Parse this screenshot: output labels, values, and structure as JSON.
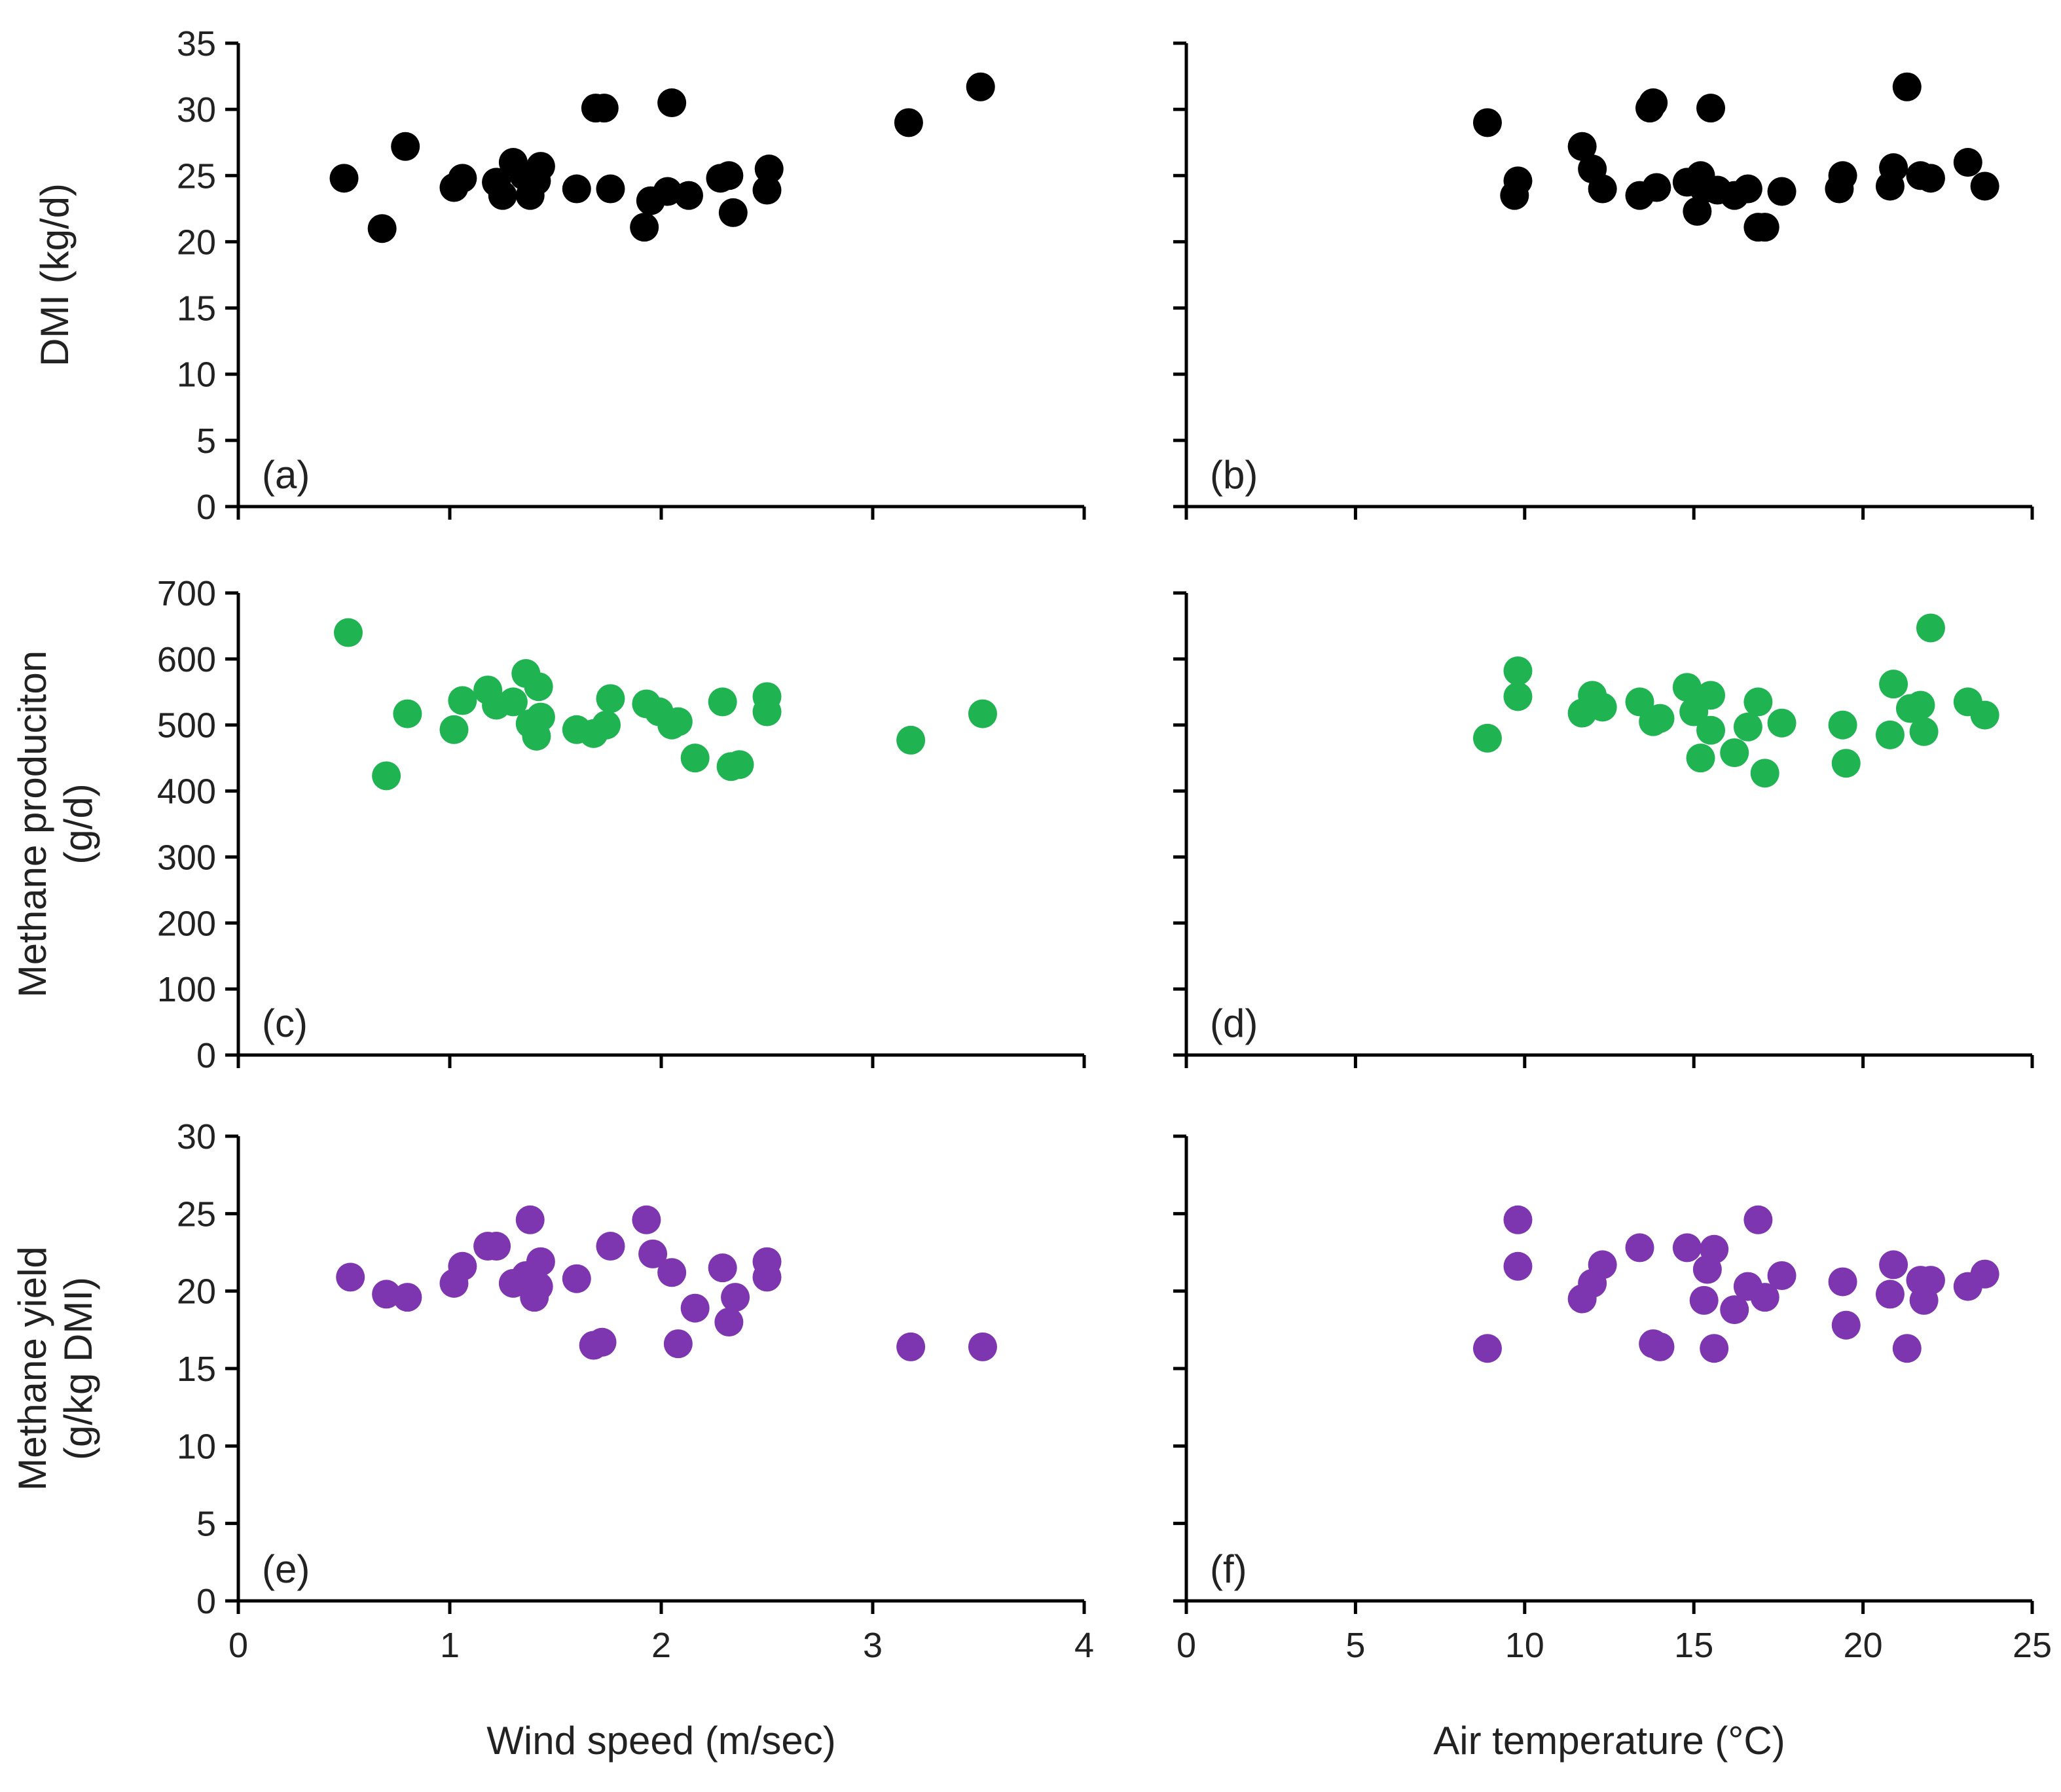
{
  "figure": {
    "colors": {
      "black": "#000000",
      "green": "#1fb451",
      "purple": "#7e35b0"
    }
  },
  "chart_data": [
    {
      "type": "scatter",
      "panel": "(a)",
      "xlabel": "",
      "ylabel": "DMI (kg/d)",
      "xlim": [
        0,
        4
      ],
      "ylim": [
        0,
        35
      ],
      "xticks": [
        0,
        1,
        2,
        3,
        4
      ],
      "yticks": [
        0,
        5,
        10,
        15,
        20,
        25,
        30,
        35
      ],
      "show_x_tick_labels": false,
      "show_y_tick_labels": true,
      "color": "#000000",
      "x": [
        0.5,
        0.68,
        0.79,
        1.02,
        1.06,
        1.22,
        1.25,
        1.3,
        1.35,
        1.38,
        1.41,
        1.43,
        1.6,
        1.69,
        1.73,
        1.76,
        1.92,
        1.95,
        2.03,
        2.05,
        2.13,
        2.28,
        2.32,
        2.34,
        2.5,
        2.51,
        3.17,
        3.51
      ],
      "y": [
        24.8,
        21.0,
        27.2,
        24.1,
        24.8,
        24.5,
        23.5,
        26.0,
        25.0,
        23.5,
        24.6,
        25.7,
        24.0,
        30.1,
        30.1,
        24.0,
        21.1,
        23.1,
        23.8,
        30.5,
        23.5,
        24.8,
        25.0,
        22.2,
        23.9,
        25.5,
        29.0,
        31.7
      ]
    },
    {
      "type": "scatter",
      "panel": "(b)",
      "xlabel": "",
      "ylabel": "",
      "xlim": [
        0,
        25
      ],
      "ylim": [
        0,
        35
      ],
      "xticks": [
        0,
        5,
        10,
        15,
        20,
        25
      ],
      "yticks": [
        0,
        5,
        10,
        15,
        20,
        25,
        30,
        35
      ],
      "show_x_tick_labels": false,
      "show_y_tick_labels": false,
      "color": "#000000",
      "x": [
        8.9,
        9.7,
        9.8,
        11.7,
        12.0,
        12.3,
        13.4,
        13.7,
        13.8,
        13.9,
        14.8,
        15.1,
        15.2,
        15.3,
        15.5,
        15.7,
        16.2,
        16.6,
        16.9,
        17.1,
        17.6,
        19.3,
        19.4,
        20.8,
        20.9,
        21.3,
        21.7,
        22.0,
        23.1,
        23.6
      ],
      "y": [
        29.0,
        23.5,
        24.6,
        27.2,
        25.5,
        24.0,
        23.5,
        30.1,
        30.5,
        24.1,
        24.5,
        22.3,
        25.0,
        24.0,
        30.1,
        23.9,
        23.5,
        24.0,
        21.1,
        21.1,
        23.8,
        24.0,
        25.0,
        24.2,
        25.6,
        31.7,
        25.0,
        24.8,
        26.0,
        24.2
      ]
    },
    {
      "type": "scatter",
      "panel": "(c)",
      "xlabel": "",
      "ylabel": "Methane produciton (g/d)",
      "ylabel_lines": [
        "Methane produciton",
        "(g/d)"
      ],
      "xlim": [
        0,
        4
      ],
      "ylim": [
        0,
        700
      ],
      "xticks": [
        0,
        1,
        2,
        3,
        4
      ],
      "yticks": [
        0,
        100,
        200,
        300,
        400,
        500,
        600,
        700
      ],
      "show_x_tick_labels": false,
      "show_y_tick_labels": true,
      "color": "#1fb451",
      "x": [
        0.52,
        0.7,
        0.8,
        1.02,
        1.06,
        1.18,
        1.22,
        1.3,
        1.36,
        1.38,
        1.41,
        1.42,
        1.43,
        1.6,
        1.68,
        1.74,
        1.76,
        1.93,
        1.99,
        2.05,
        2.08,
        2.16,
        2.29,
        2.33,
        2.37,
        2.5,
        2.5,
        3.18,
        3.52
      ],
      "y": [
        640,
        423,
        517,
        493,
        537,
        553,
        530,
        535,
        578,
        502,
        483,
        558,
        512,
        493,
        487,
        500,
        540,
        532,
        520,
        500,
        505,
        450,
        535,
        437,
        440,
        543,
        520,
        477,
        517
      ]
    },
    {
      "type": "scatter",
      "panel": "(d)",
      "xlabel": "",
      "ylabel": "",
      "xlim": [
        0,
        25
      ],
      "ylim": [
        0,
        700
      ],
      "xticks": [
        0,
        5,
        10,
        15,
        20,
        25
      ],
      "yticks": [
        0,
        100,
        200,
        300,
        400,
        500,
        600,
        700
      ],
      "show_x_tick_labels": false,
      "show_y_tick_labels": false,
      "color": "#1fb451",
      "x": [
        8.9,
        9.8,
        9.8,
        11.7,
        12.0,
        12.3,
        13.4,
        13.8,
        14.0,
        14.8,
        15.0,
        15.2,
        15.5,
        15.5,
        16.2,
        16.6,
        16.9,
        17.1,
        17.6,
        19.4,
        19.5,
        20.8,
        20.9,
        21.4,
        21.7,
        21.8,
        22.0,
        23.1,
        23.6
      ],
      "y": [
        480,
        582,
        543,
        518,
        545,
        527,
        535,
        505,
        510,
        557,
        520,
        450,
        545,
        492,
        458,
        497,
        535,
        427,
        503,
        500,
        442,
        485,
        562,
        525,
        530,
        490,
        647,
        535,
        515
      ]
    },
    {
      "type": "scatter",
      "panel": "(e)",
      "xlabel": "Wind speed (m/sec)",
      "ylabel": "Methane yield (g/kg DMI)",
      "ylabel_lines": [
        "Methane yield",
        "(g/kg DMI)"
      ],
      "xlim": [
        0,
        4
      ],
      "ylim": [
        0,
        30
      ],
      "xticks": [
        0,
        1,
        2,
        3,
        4
      ],
      "yticks": [
        0,
        5,
        10,
        15,
        20,
        25,
        30
      ],
      "show_x_tick_labels": true,
      "show_y_tick_labels": true,
      "color": "#7e35b0",
      "x": [
        0.53,
        0.7,
        0.8,
        1.02,
        1.06,
        1.18,
        1.22,
        1.3,
        1.36,
        1.38,
        1.4,
        1.42,
        1.43,
        1.6,
        1.68,
        1.72,
        1.76,
        1.93,
        1.96,
        2.05,
        2.08,
        2.16,
        2.29,
        2.32,
        2.35,
        2.5,
        2.5,
        3.18,
        3.52
      ],
      "y": [
        20.9,
        19.8,
        19.6,
        20.5,
        21.6,
        22.9,
        22.9,
        20.5,
        21.0,
        24.6,
        19.6,
        20.3,
        21.9,
        20.8,
        16.5,
        16.7,
        22.9,
        24.6,
        22.4,
        21.2,
        16.6,
        18.9,
        21.5,
        18.0,
        19.6,
        20.9,
        21.9,
        16.4,
        16.4
      ]
    },
    {
      "type": "scatter",
      "panel": "(f)",
      "xlabel": "Air temperature (°C)",
      "ylabel": "",
      "xlim": [
        0,
        25
      ],
      "ylim": [
        0,
        30
      ],
      "xticks": [
        0,
        5,
        10,
        15,
        20,
        25
      ],
      "yticks": [
        0,
        5,
        10,
        15,
        20,
        25,
        30
      ],
      "show_x_tick_labels": true,
      "show_y_tick_labels": false,
      "color": "#7e35b0",
      "x": [
        8.9,
        9.8,
        9.8,
        11.7,
        12.0,
        12.3,
        13.4,
        13.8,
        14.0,
        14.8,
        15.3,
        15.4,
        15.6,
        15.6,
        16.2,
        16.6,
        16.9,
        17.1,
        17.6,
        19.4,
        19.5,
        20.8,
        20.9,
        21.3,
        21.7,
        21.8,
        22.0,
        23.1,
        23.6
      ],
      "y": [
        16.3,
        24.6,
        21.6,
        19.5,
        20.5,
        21.7,
        22.8,
        16.6,
        16.4,
        22.8,
        19.4,
        21.4,
        22.7,
        16.3,
        18.8,
        20.3,
        24.6,
        19.6,
        21.0,
        20.6,
        17.8,
        19.8,
        21.7,
        16.3,
        20.7,
        19.4,
        20.7,
        20.3,
        21.1
      ]
    }
  ]
}
